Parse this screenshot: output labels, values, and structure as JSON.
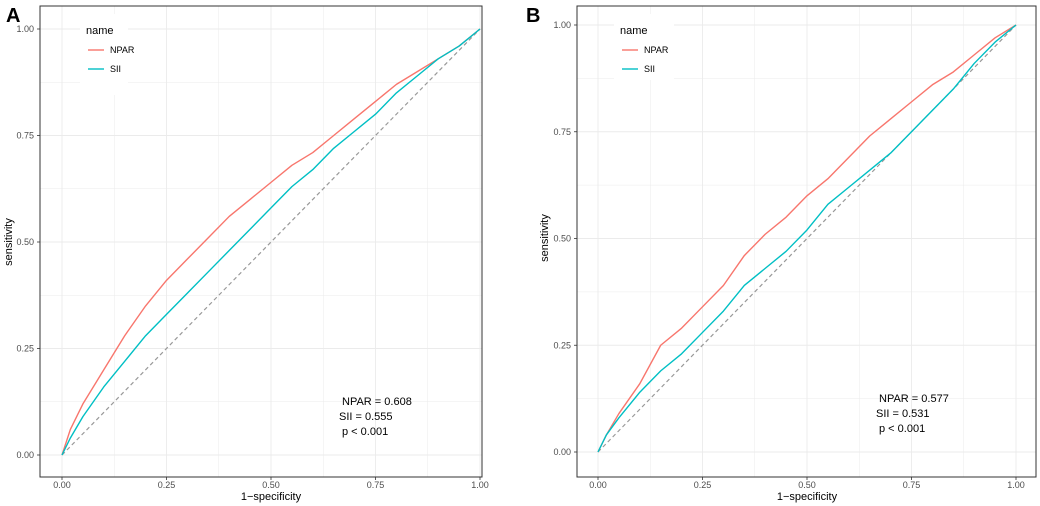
{
  "colors": {
    "npar": "#F8766D",
    "sii": "#00BFC4",
    "diagonal": "#999999",
    "grid": "#EBEBEB",
    "border": "#333333"
  },
  "chart_data": [
    {
      "panel": "A",
      "type": "line",
      "xlabel": "1−specificity",
      "ylabel": "sensitivity",
      "xlim": [
        0,
        1
      ],
      "ylim": [
        0,
        1
      ],
      "xticks": [
        "0.00",
        "0.25",
        "0.50",
        "0.75",
        "1.00"
      ],
      "yticks": [
        "0.00",
        "0.25",
        "0.50",
        "0.75",
        "1.00"
      ],
      "legend_title": "name",
      "legend_position": "top-left",
      "series": [
        {
          "name": "NPAR",
          "color_key": "npar",
          "x": [
            0,
            0.02,
            0.05,
            0.1,
            0.15,
            0.2,
            0.25,
            0.3,
            0.35,
            0.4,
            0.45,
            0.5,
            0.55,
            0.6,
            0.65,
            0.7,
            0.75,
            0.8,
            0.85,
            0.9,
            0.95,
            1.0
          ],
          "y": [
            0,
            0.06,
            0.12,
            0.2,
            0.28,
            0.35,
            0.41,
            0.46,
            0.51,
            0.56,
            0.6,
            0.64,
            0.68,
            0.71,
            0.75,
            0.79,
            0.83,
            0.87,
            0.9,
            0.93,
            0.96,
            1.0
          ]
        },
        {
          "name": "SII",
          "color_key": "sii",
          "x": [
            0,
            0.02,
            0.05,
            0.1,
            0.15,
            0.2,
            0.25,
            0.3,
            0.35,
            0.4,
            0.45,
            0.5,
            0.55,
            0.6,
            0.65,
            0.7,
            0.75,
            0.8,
            0.85,
            0.9,
            0.95,
            1.0
          ],
          "y": [
            0,
            0.04,
            0.09,
            0.16,
            0.22,
            0.28,
            0.33,
            0.38,
            0.43,
            0.48,
            0.53,
            0.58,
            0.63,
            0.67,
            0.72,
            0.76,
            0.8,
            0.85,
            0.89,
            0.93,
            0.96,
            1.0
          ]
        }
      ],
      "reference_line": {
        "x": [
          0,
          1
        ],
        "y": [
          0,
          1
        ],
        "style": "dashed"
      },
      "annotation": [
        "NPAR =  0.608",
        "SII =  0.555",
        "p < 0.001"
      ]
    },
    {
      "panel": "B",
      "type": "line",
      "xlabel": "1−specificity",
      "ylabel": "sensitivity",
      "xlim": [
        0,
        1
      ],
      "ylim": [
        0,
        1
      ],
      "xticks": [
        "0.00",
        "0.25",
        "0.50",
        "0.75",
        "1.00"
      ],
      "yticks": [
        "0.00",
        "0.25",
        "0.50",
        "0.75",
        "1.00"
      ],
      "legend_title": "name",
      "legend_position": "top-left",
      "series": [
        {
          "name": "NPAR",
          "color_key": "npar",
          "x": [
            0,
            0.02,
            0.05,
            0.1,
            0.15,
            0.2,
            0.25,
            0.3,
            0.35,
            0.4,
            0.45,
            0.5,
            0.55,
            0.6,
            0.65,
            0.7,
            0.75,
            0.8,
            0.85,
            0.9,
            0.95,
            1.0
          ],
          "y": [
            0,
            0.04,
            0.09,
            0.16,
            0.25,
            0.29,
            0.34,
            0.39,
            0.46,
            0.51,
            0.55,
            0.6,
            0.64,
            0.69,
            0.74,
            0.78,
            0.82,
            0.86,
            0.89,
            0.93,
            0.97,
            1.0
          ]
        },
        {
          "name": "SII",
          "color_key": "sii",
          "x": [
            0,
            0.02,
            0.05,
            0.1,
            0.15,
            0.2,
            0.25,
            0.3,
            0.35,
            0.4,
            0.45,
            0.5,
            0.55,
            0.6,
            0.65,
            0.7,
            0.75,
            0.8,
            0.85,
            0.9,
            0.95,
            1.0
          ],
          "y": [
            0,
            0.04,
            0.08,
            0.14,
            0.19,
            0.23,
            0.28,
            0.33,
            0.39,
            0.43,
            0.47,
            0.52,
            0.58,
            0.62,
            0.66,
            0.7,
            0.75,
            0.8,
            0.85,
            0.91,
            0.96,
            1.0
          ]
        }
      ],
      "reference_line": {
        "x": [
          0,
          1
        ],
        "y": [
          0,
          1
        ],
        "style": "dashed"
      },
      "annotation": [
        "NPAR =  0.577",
        "SII =  0.531",
        "p < 0.001"
      ]
    }
  ]
}
